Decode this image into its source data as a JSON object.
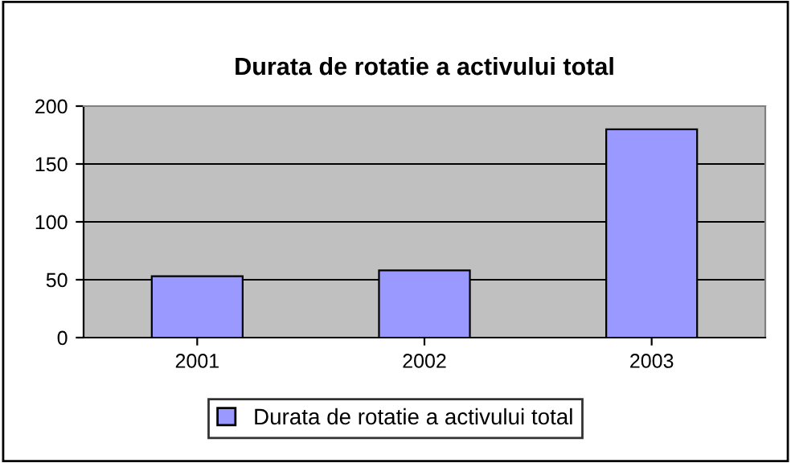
{
  "chart_data": {
    "type": "bar",
    "title": "Durata de rotatie a activului total",
    "categories": [
      "2001",
      "2002",
      "2003"
    ],
    "series": [
      {
        "name": "Durata de rotatie a activului total",
        "color": "#9999ff",
        "values": [
          53,
          58,
          180
        ]
      }
    ],
    "ylim": [
      0,
      200
    ],
    "yticks": [
      0,
      50,
      100,
      150,
      200
    ],
    "grid": "y",
    "legend": "bottom"
  }
}
